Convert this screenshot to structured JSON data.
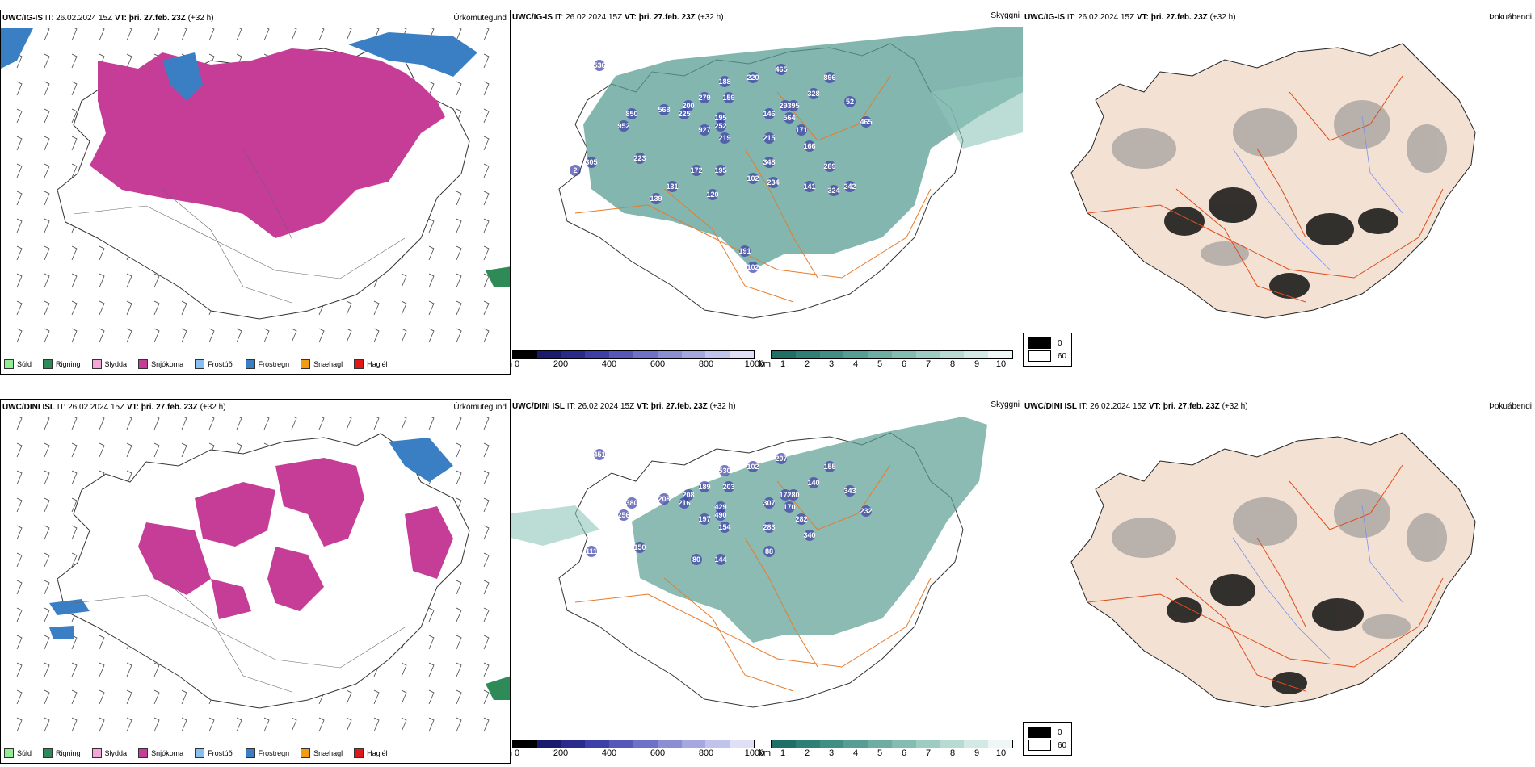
{
  "rows": [
    {
      "model": "UWC/IG-IS",
      "it_label": "IT:",
      "it_value": "26.02.2024 15Z",
      "vt_label": "VT:",
      "vt_value": "þri. 27.feb. 23Z",
      "lead": "(+32 h)",
      "precip_title": "Úrkomutegund",
      "visibility_title": "Skyggni",
      "fog_title": "Þokuábendi",
      "cloud_labels": [
        "536",
        "850",
        "952",
        "568",
        "225",
        "279",
        "159",
        "195",
        "188",
        "220",
        "465",
        "896",
        "328",
        "294",
        "146",
        "564",
        "927",
        "252",
        "219",
        "215",
        "395",
        "171",
        "200",
        "52",
        "465",
        "166",
        "305",
        "223",
        "172",
        "195",
        "348",
        "289",
        "131",
        "102",
        "234",
        "141",
        "324",
        "242",
        "139",
        "120",
        "191",
        "102",
        "2"
      ],
      "vis_labels": []
    },
    {
      "model": "UWC/DINI ISL",
      "it_label": "IT:",
      "it_value": "26.02.2024 15Z",
      "vt_label": "VT:",
      "vt_value": "þri. 27.feb. 23Z",
      "lead": "(+32 h)",
      "precip_title": "Úrkomutegund",
      "visibility_title": "Skyggni",
      "fog_title": "Þokuábendi",
      "cloud_labels": [
        "451",
        "380",
        "256",
        "208",
        "216",
        "189",
        "203",
        "429",
        "530",
        "102",
        "207",
        "155",
        "140",
        "174",
        "307",
        "170",
        "197",
        "490",
        "154",
        "283",
        "280",
        "282",
        "208",
        "343",
        "232",
        "340",
        "111",
        "150",
        "80",
        "144",
        "88"
      ],
      "vis_labels": []
    }
  ],
  "precip_legend": [
    {
      "label": "Súld",
      "color": "#90ee90"
    },
    {
      "label": "Rigning",
      "color": "#2e8b57"
    },
    {
      "label": "Slydda",
      "color": "#f4a6d7"
    },
    {
      "label": "Snjókoma",
      "color": "#c53d97"
    },
    {
      "label": "Frostúði",
      "color": "#87bff0"
    },
    {
      "label": "Frostregn",
      "color": "#3a7fc4"
    },
    {
      "label": "Snæhagl",
      "color": "#f39c12"
    },
    {
      "label": "Haglél",
      "color": "#e01818"
    }
  ],
  "cloud_bar": {
    "unit": "m",
    "ticks": [
      "0",
      "200",
      "400",
      "600",
      "800",
      "1000"
    ]
  },
  "vis_bar": {
    "unit": "km",
    "ticks": [
      "1",
      "2",
      "3",
      "4",
      "5",
      "6",
      "7",
      "8",
      "9",
      "10"
    ]
  },
  "fog_legend": {
    "values": [
      "0",
      "60"
    ]
  },
  "colors": {
    "snow": "#c53d97",
    "freezing_rain": "#3a7fc4",
    "rain": "#2e8b57",
    "drizzle_freeze": "#87bff0",
    "vis_teal": "#5a9e93",
    "cloud_blue": "#3d3fa8",
    "roads": "#e87b2a",
    "land_fog": "#f3e2d4",
    "fog_roads": "#e04a1a"
  }
}
